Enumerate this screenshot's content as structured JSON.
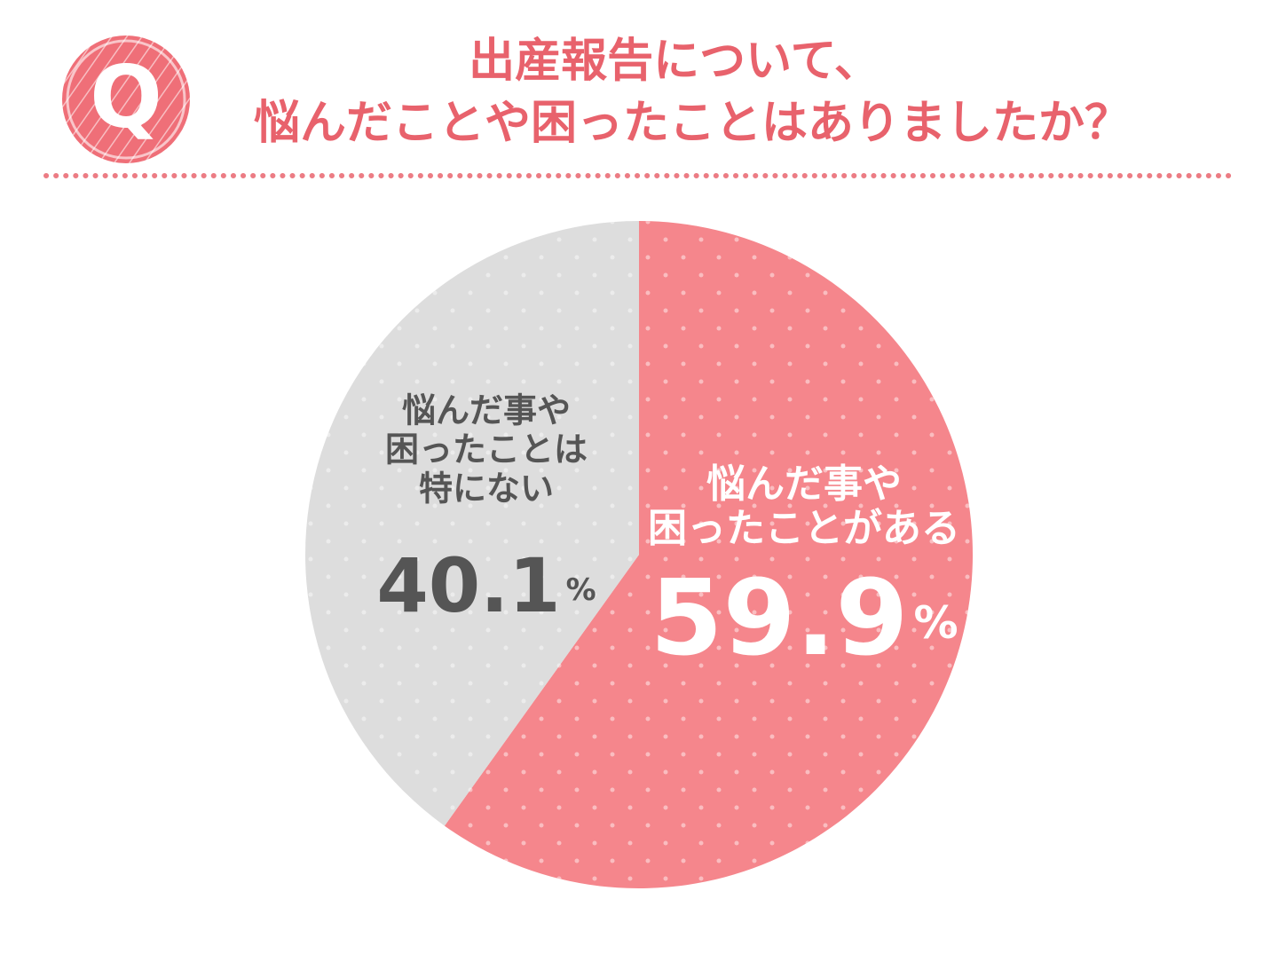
{
  "icon": "Q",
  "chart_data": {
    "type": "pie",
    "title": [
      "出産報告について、",
      "悩んだことや困ったことはありましたか？"
    ],
    "categories": [
      [
        "悩んだ事や",
        "困ったことがある"
      ],
      [
        "悩んだ事や",
        "困ったことは",
        "特にない"
      ]
    ],
    "values": [
      59.9,
      40.1
    ],
    "unit": "%",
    "colors": [
      "#f5868c",
      "#dddddd"
    ],
    "start_angle": 0,
    "direction": "clockwise"
  }
}
